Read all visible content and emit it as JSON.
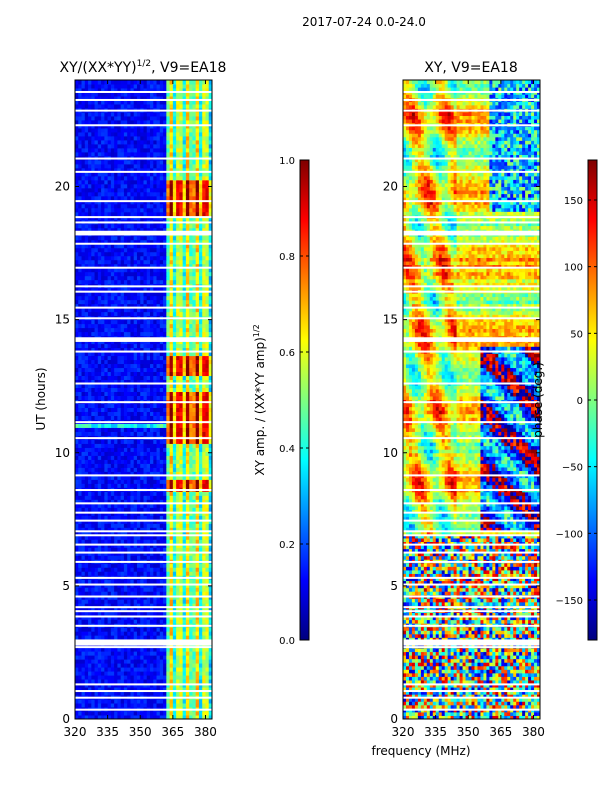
{
  "figure": {
    "suptitle": "2017-07-24 0.0-24.0",
    "shared_xlabel": "frequency (MHz)"
  },
  "colors": {
    "colormap": [
      "#00007f",
      "#0000ff",
      "#007fff",
      "#00ffff",
      "#7fff7f",
      "#ffff00",
      "#ff7f00",
      "#ff0000",
      "#7f0000"
    ],
    "flag": "#ffffff",
    "frame": "#000000"
  },
  "chart_data": [
    {
      "type": "heatmap",
      "title_main": "XY/(XX*YY)",
      "title_sup": "1/2",
      "title_rest": ", V9=EA18",
      "xlabel": "",
      "ylabel": "UT (hours)",
      "xlim": [
        320,
        383
      ],
      "ylim": [
        0,
        24
      ],
      "xticks": [
        320,
        335,
        350,
        365,
        380
      ],
      "yticks": [
        0,
        5,
        10,
        15,
        20
      ],
      "value_range": [
        0.0,
        1.0
      ],
      "bright_channels_mhz": [
        364,
        368,
        372,
        376,
        380
      ],
      "colorbar": {
        "label_main": "XY amp. / (XX*YY amp)",
        "label_sup": "1/2",
        "range": [
          0.0,
          1.0
        ],
        "ticks": [
          "0.0",
          "0.2",
          "0.4",
          "0.6",
          "0.8",
          "1.0"
        ],
        "tick_values": [
          0.0,
          0.2,
          0.4,
          0.6,
          0.8,
          1.0
        ]
      }
    },
    {
      "type": "heatmap",
      "title_main": "XY, V9=EA18",
      "title_sup": "",
      "title_rest": "",
      "xlabel": "frequency (MHz)",
      "ylabel": "",
      "xlim": [
        320,
        383
      ],
      "ylim": [
        0,
        24
      ],
      "xticks": [
        320,
        335,
        350,
        365,
        380
      ],
      "yticks": [
        0,
        5,
        10,
        15,
        20
      ],
      "value_range": [
        -180,
        180
      ],
      "colorbar": {
        "label_main": "phase (deg.)",
        "label_sup": "",
        "range": [
          -180,
          180
        ],
        "ticks": [
          "−150",
          "−100",
          "−50",
          "0",
          "50",
          "100",
          "150"
        ],
        "tick_values": [
          -150,
          -100,
          -50,
          0,
          50,
          100,
          150
        ]
      }
    }
  ],
  "flagged_hours": [
    0.35,
    0.8,
    1.05,
    1.3,
    2.7,
    2.95,
    3.5,
    3.85,
    4.05,
    4.2,
    4.6,
    5.05,
    5.3,
    5.9,
    6.25,
    6.55,
    6.9,
    7.05,
    7.45,
    7.75,
    8.1,
    8.6,
    9.15,
    10.55,
    11.15,
    11.9,
    12.6,
    13.8,
    14.2,
    14.3,
    15.05,
    15.45,
    16.05,
    16.25,
    16.95,
    17.85,
    18.2,
    18.3,
    18.65,
    18.85,
    19.45,
    20.55,
    21.05,
    22.3,
    22.85,
    23.25,
    23.55
  ]
}
